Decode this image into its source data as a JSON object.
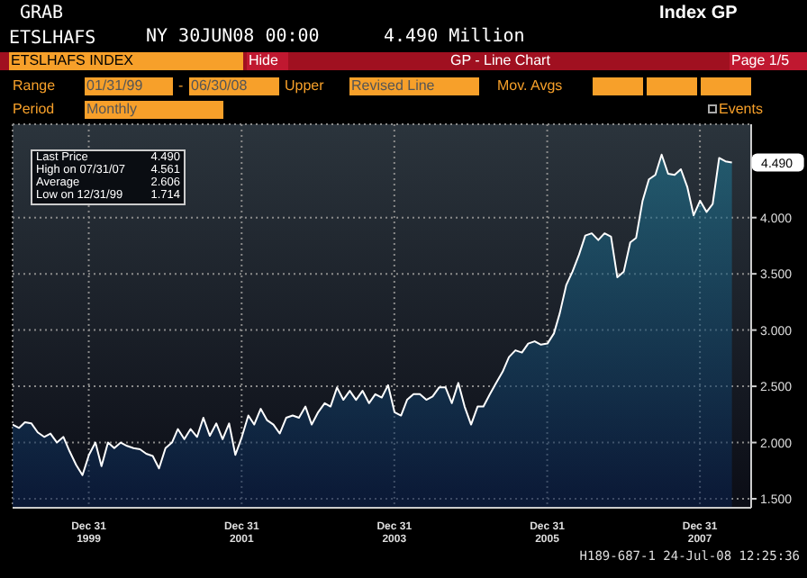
{
  "chart_data": {
    "type": "area",
    "title": "ETSLHAFS",
    "annotations": [
      "GRAB",
      "Index GP",
      "NY 30JUN08 00:00",
      "4.490 Million",
      "ETSLHAFS INDEX",
      "Hide",
      "GP - Line Chart",
      "Page 1/5",
      "Range",
      "01/31/99",
      "-",
      "06/30/08",
      "Upper",
      "Revised Line",
      "Mov. Avgs",
      "Period",
      "Monthly",
      "Events",
      "Last Price",
      "4.490",
      "High on 07/31/07",
      "4.561",
      "Average",
      "2.606",
      "Low on 12/31/99",
      "1.714",
      "H189-687-1 24-Jul-08 12:25:36",
      {
        "text": "4.490",
        "x": "2008-06",
        "y": 4.49
      }
    ],
    "x": [
      "1999-01",
      "1999-02",
      "1999-03",
      "1999-04",
      "1999-05",
      "1999-06",
      "1999-07",
      "1999-08",
      "1999-09",
      "1999-10",
      "1999-11",
      "1999-12",
      "2000-01",
      "2000-02",
      "2000-03",
      "2000-04",
      "2000-05",
      "2000-06",
      "2000-07",
      "2000-08",
      "2000-09",
      "2000-10",
      "2000-11",
      "2000-12",
      "2001-01",
      "2001-02",
      "2001-03",
      "2001-04",
      "2001-05",
      "2001-06",
      "2001-07",
      "2001-08",
      "2001-09",
      "2001-10",
      "2001-11",
      "2001-12",
      "2002-01",
      "2002-02",
      "2002-03",
      "2002-04",
      "2002-05",
      "2002-06",
      "2002-07",
      "2002-08",
      "2002-09",
      "2002-10",
      "2002-11",
      "2002-12",
      "2003-01",
      "2003-02",
      "2003-03",
      "2003-04",
      "2003-05",
      "2003-06",
      "2003-07",
      "2003-08",
      "2003-09",
      "2003-10",
      "2003-11",
      "2003-12",
      "2004-01",
      "2004-02",
      "2004-03",
      "2004-04",
      "2004-05",
      "2004-06",
      "2004-07",
      "2004-08",
      "2004-09",
      "2004-10",
      "2004-11",
      "2004-12",
      "2005-01",
      "2005-02",
      "2005-03",
      "2005-04",
      "2005-05",
      "2005-06",
      "2005-07",
      "2005-08",
      "2005-09",
      "2005-10",
      "2005-11",
      "2005-12",
      "2006-01",
      "2006-02",
      "2006-03",
      "2006-04",
      "2006-05",
      "2006-06",
      "2006-07",
      "2006-08",
      "2006-09",
      "2006-10",
      "2006-11",
      "2006-12",
      "2007-01",
      "2007-02",
      "2007-03",
      "2007-04",
      "2007-05",
      "2007-06",
      "2007-07",
      "2007-08",
      "2007-09",
      "2007-10",
      "2007-11",
      "2007-12",
      "2008-01",
      "2008-02",
      "2008-03",
      "2008-04",
      "2008-05",
      "2008-06"
    ],
    "series": [
      {
        "color": "#1f7590",
        "values": [
          2.16,
          2.13,
          2.18,
          2.17,
          2.09,
          2.05,
          2.08,
          2.0,
          2.05,
          1.92,
          1.8,
          1.71,
          1.89,
          2.0,
          1.79,
          2.0,
          1.95,
          2.0,
          1.97,
          1.95,
          1.94,
          1.9,
          1.88,
          1.77,
          1.95,
          2.0,
          2.12,
          2.03,
          2.12,
          2.05,
          2.22,
          2.06,
          2.17,
          2.03,
          2.17,
          1.89,
          2.05,
          2.24,
          2.16,
          2.3,
          2.2,
          2.16,
          2.08,
          2.22,
          2.24,
          2.22,
          2.32,
          2.16,
          2.27,
          2.35,
          2.32,
          2.49,
          2.38,
          2.46,
          2.38,
          2.46,
          2.35,
          2.43,
          2.4,
          2.51,
          2.27,
          2.24,
          2.38,
          2.43,
          2.43,
          2.38,
          2.41,
          2.49,
          2.49,
          2.35,
          2.53,
          2.32,
          2.16,
          2.32,
          2.32,
          2.43,
          2.53,
          2.63,
          2.76,
          2.82,
          2.8,
          2.88,
          2.9,
          2.87,
          2.88,
          2.97,
          3.15,
          3.4,
          3.52,
          3.67,
          3.84,
          3.86,
          3.8,
          3.86,
          3.83,
          3.47,
          3.52,
          3.78,
          3.82,
          4.15,
          4.34,
          4.38,
          4.56,
          4.39,
          4.38,
          4.43,
          4.27,
          4.02,
          4.15,
          4.05,
          4.12,
          4.53,
          4.5,
          4.49
        ]
      }
    ],
    "xlim": [
      "1999-01",
      "2008-09"
    ],
    "xticks": [
      {
        "value": "1999-12-31",
        "label": "Dec 31\n1999"
      },
      {
        "value": "2001-12-31",
        "label": "Dec 31\n2001"
      },
      {
        "value": "2003-12-31",
        "label": "Dec 31\n2003"
      },
      {
        "value": "2005-12-31",
        "label": "Dec 31\n2005"
      },
      {
        "value": "2007-12-31",
        "label": "Dec 31\n2007"
      }
    ],
    "ylim": [
      1.42,
      4.83
    ],
    "yticks": [
      {
        "value": 1.5,
        "label": "1.500"
      },
      {
        "value": 2.0,
        "label": "2.000"
      },
      {
        "value": 2.5,
        "label": "2.500"
      },
      {
        "value": 3.0,
        "label": "3.000"
      },
      {
        "value": 3.5,
        "label": "3.500"
      },
      {
        "value": 4.0,
        "label": "4.000"
      }
    ],
    "grid": true
  }
}
